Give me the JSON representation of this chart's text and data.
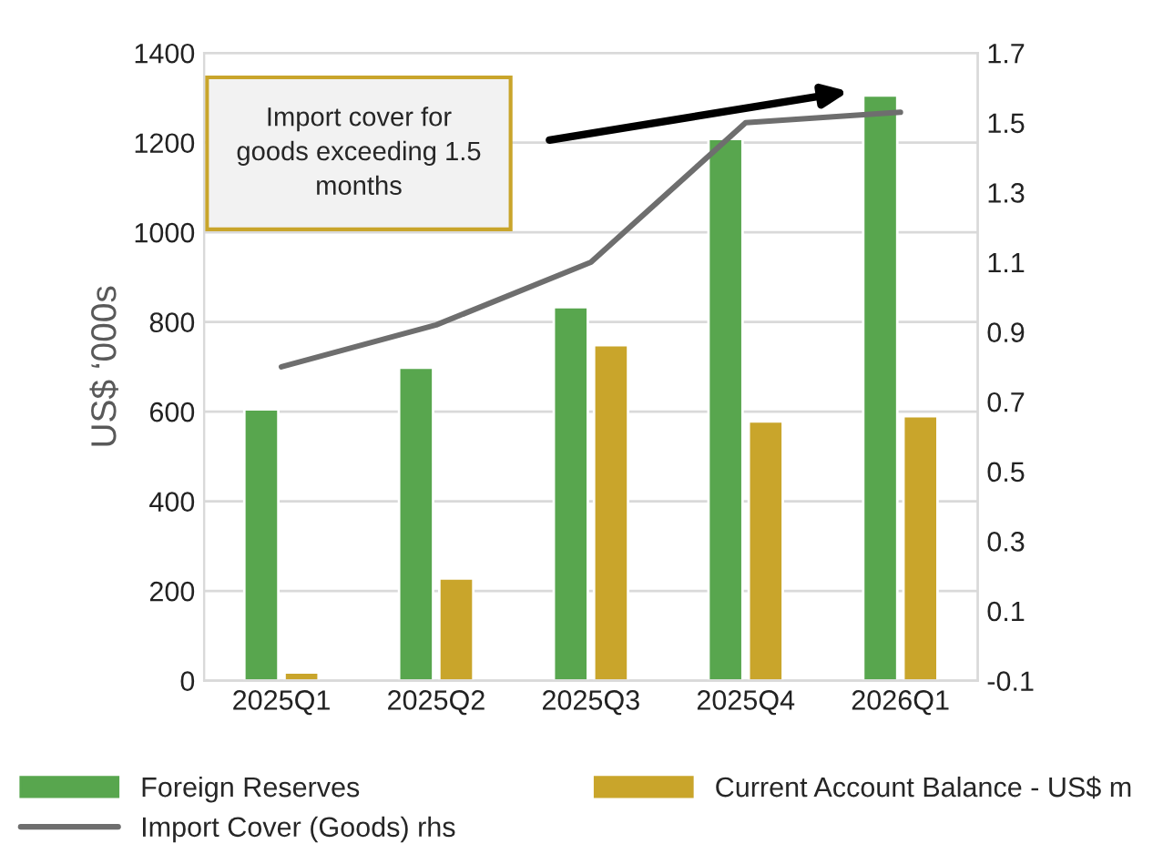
{
  "chart_data": {
    "type": "bar",
    "ylabel": "US$ ‘000s",
    "categories": [
      "2025Q1",
      "2025Q2",
      "2025Q3",
      "2025Q4",
      "2026Q1"
    ],
    "series": [
      {
        "name": "Foreign Reserves",
        "color": "#58a64e",
        "values": [
          605,
          698,
          833,
          1208,
          1305
        ]
      },
      {
        "name": "Current Account Balance - US$ m",
        "color": "#c9a52b",
        "values": [
          18,
          228,
          748,
          578,
          590
        ]
      },
      {
        "name": "Import Cover (Goods) rhs",
        "type": "line",
        "axis": "y2",
        "color": "#6e6e6e",
        "values": [
          0.8,
          0.92,
          1.1,
          1.5,
          1.53
        ]
      }
    ],
    "ylim": [
      0,
      1400
    ],
    "yticks": [
      0,
      200,
      400,
      600,
      800,
      1000,
      1200,
      1400
    ],
    "y2lim": [
      -0.1,
      1.7
    ],
    "y2ticks": [
      -0.1,
      0.1,
      0.3,
      0.5,
      0.7,
      0.9,
      1.1,
      1.3,
      1.5,
      1.7
    ],
    "grid": "y",
    "legend": "bottom",
    "marker": "none",
    "line_style": "solid",
    "annotations": [
      "Import cover for\ngoods exceeding 1.5\nmonths"
    ]
  }
}
